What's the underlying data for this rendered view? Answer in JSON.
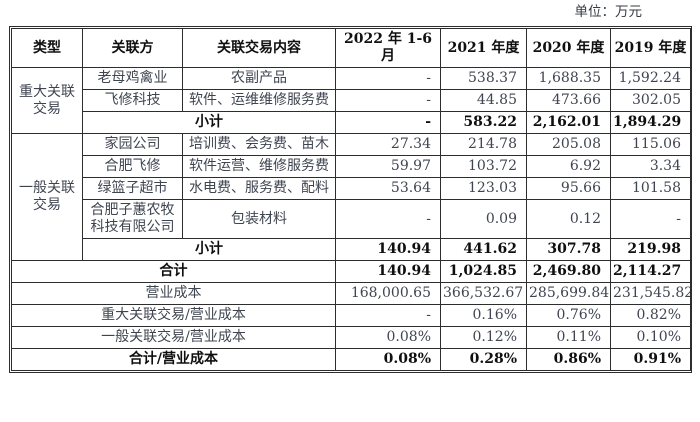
{
  "unit_label": "单位：万元",
  "table": {
    "headers": [
      "类型",
      "关联方",
      "关联交易内容",
      "2022 年 1-6 月",
      "2021 年度",
      "2020 年度",
      "2019 年度"
    ],
    "subtotal_label": "小计",
    "sections": [
      {
        "type": "重大关联交易",
        "rows": [
          {
            "party": "老母鸡禽业",
            "content": "农副产品",
            "values": [
              "-",
              "538.37",
              "1,688.35",
              "1,592.24"
            ]
          },
          {
            "party": "飞修科技",
            "content": "软件、运维维修服务费",
            "values": [
              "-",
              "44.85",
              "473.66",
              "302.05"
            ]
          }
        ],
        "subtotal": {
          "values": [
            "-",
            "583.22",
            "2,162.01",
            "1,894.29"
          ]
        }
      },
      {
        "type": "一般关联交易",
        "rows": [
          {
            "party": "家园公司",
            "content": "培训费、会务费、苗木",
            "values": [
              "27.34",
              "214.78",
              "205.08",
              "115.06"
            ]
          },
          {
            "party": "合肥飞修",
            "content": "软件运营、维修服务费",
            "values": [
              "59.97",
              "103.72",
              "6.92",
              "3.34"
            ]
          },
          {
            "party": "绿篮子超市",
            "content": "水电费、服务费、配料",
            "values": [
              "53.64",
              "123.03",
              "95.66",
              "101.58"
            ]
          },
          {
            "party": "合肥子蕙农牧科技有限公司",
            "content": "包装材料",
            "values": [
              "-",
              "0.09",
              "0.12",
              "-"
            ]
          }
        ],
        "subtotal": {
          "values": [
            "140.94",
            "441.62",
            "307.78",
            "219.98"
          ]
        }
      }
    ],
    "summary_rows": [
      {
        "label": "合计",
        "bold": true,
        "values": [
          "140.94",
          "1,024.85",
          "2,469.80",
          "2,114.27"
        ]
      },
      {
        "label": "营业成本",
        "bold": false,
        "values": [
          "168,000.65",
          "366,532.67",
          "285,699.84",
          "231,545.82"
        ]
      },
      {
        "label": "重大关联交易/营业成本",
        "bold": false,
        "values": [
          "-",
          "0.16%",
          "0.76%",
          "0.82%"
        ]
      },
      {
        "label": "一般关联交易/营业成本",
        "bold": false,
        "values": [
          "0.08%",
          "0.12%",
          "0.11%",
          "0.10%"
        ]
      },
      {
        "label": "合计/营业成本",
        "bold": true,
        "values": [
          "0.08%",
          "0.28%",
          "0.86%",
          "0.91%"
        ]
      }
    ]
  }
}
